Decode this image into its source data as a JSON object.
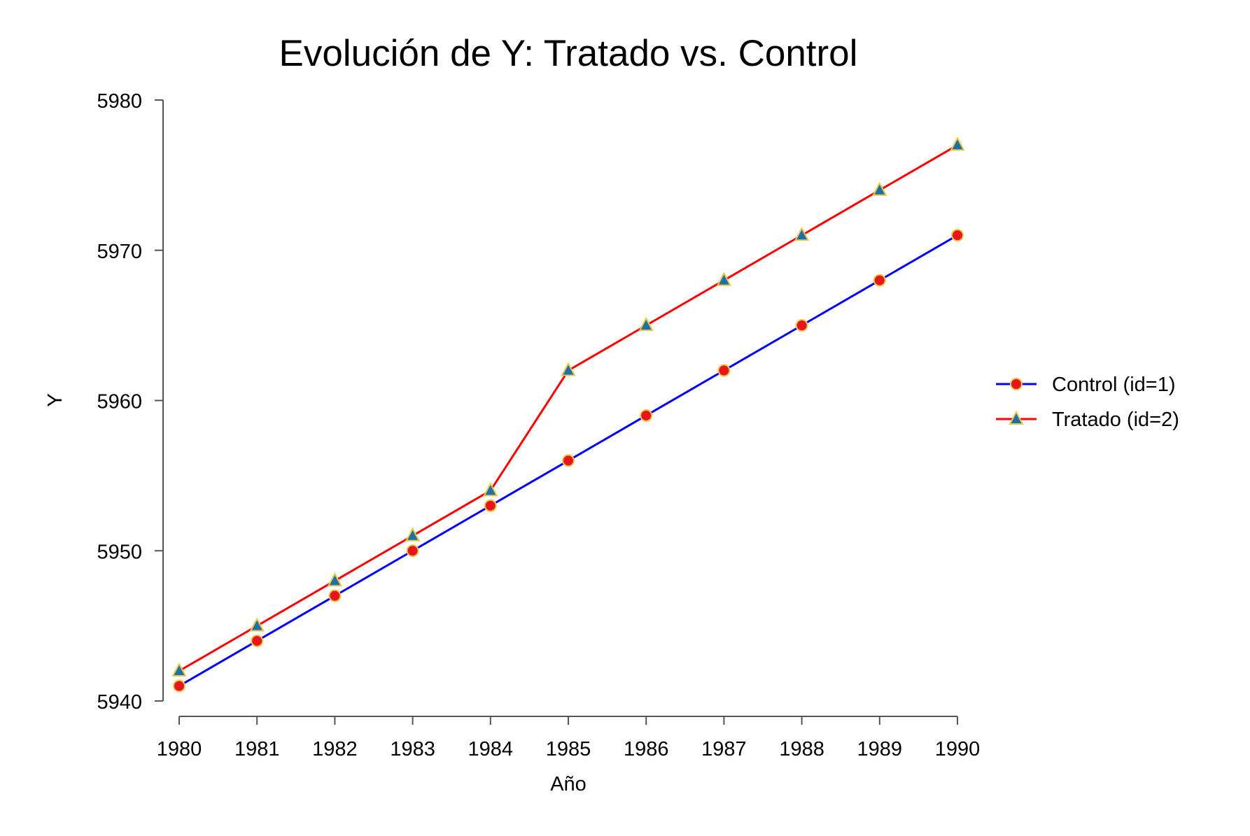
{
  "chart_data": {
    "type": "line",
    "title": "Evolución de Y: Tratado vs. Control",
    "xlabel": "Año",
    "ylabel": "Y",
    "x": [
      1980,
      1981,
      1982,
      1983,
      1984,
      1985,
      1986,
      1987,
      1988,
      1989,
      1990
    ],
    "xticks": [
      "1980",
      "1981",
      "1982",
      "1983",
      "1984",
      "1985",
      "1986",
      "1987",
      "1988",
      "1989",
      "1990"
    ],
    "yticks": [
      "5940",
      "5950",
      "5960",
      "5970",
      "5980"
    ],
    "xlim": [
      1980,
      1990
    ],
    "ylim": [
      5940,
      5980
    ],
    "grid": false,
    "legend_position": "right",
    "series": [
      {
        "name": "Control (id=1)",
        "values": [
          5941,
          5944,
          5947,
          5950,
          5953,
          5956,
          5959,
          5962,
          5965,
          5968,
          5971
        ],
        "line_color": "#0000ff",
        "marker": "circle",
        "marker_fill": "#e8161b",
        "marker_edge": "#e6c84a"
      },
      {
        "name": "Tratado (id=2)",
        "values": [
          5942,
          5945,
          5948,
          5951,
          5954,
          5962,
          5965,
          5968,
          5971,
          5974,
          5977
        ],
        "line_color": "#ff0000",
        "marker": "triangle",
        "marker_fill": "#1f6fa8",
        "marker_edge": "#e6c84a"
      }
    ]
  }
}
